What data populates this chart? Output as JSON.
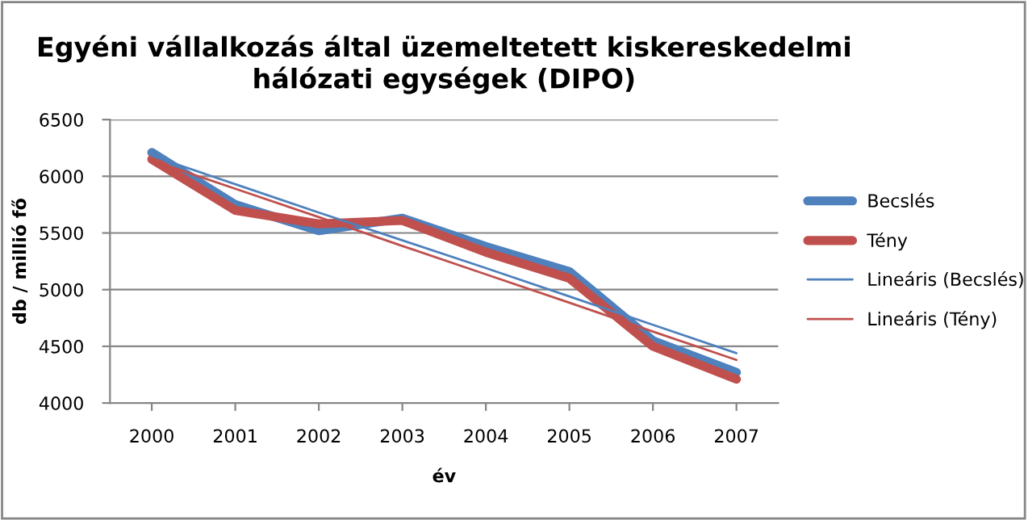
{
  "chart_data": {
    "type": "line",
    "title": "Egyéni vállalkozás által üzemeltetett kiskereskedelmi\nhálózati egységek (DIPO)",
    "xlabel": "év",
    "ylabel": "db / millió fő",
    "categories": [
      "2000",
      "2001",
      "2002",
      "2003",
      "2004",
      "2005",
      "2006",
      "2007"
    ],
    "series": [
      {
        "name": "Becslés",
        "color": "#4f81bd",
        "values": [
          6210,
          5750,
          5520,
          5630,
          5380,
          5160,
          4550,
          4270
        ]
      },
      {
        "name": "Tény",
        "color": "#c0504d",
        "values": [
          6150,
          5700,
          5580,
          5610,
          5330,
          5100,
          4500,
          4210
        ]
      },
      {
        "name": "Lineáris (Becslés)",
        "color": "#4f81bd",
        "values": [
          6180,
          5930,
          5680,
          5435,
          5190,
          4940,
          4690,
          4440
        ]
      },
      {
        "name": "Lineáris (Tény)",
        "color": "#c0504d",
        "values": [
          6140,
          5890,
          5640,
          5385,
          5135,
          4885,
          4630,
          4380
        ]
      }
    ],
    "ylim": [
      4000,
      6500
    ],
    "yticks": [
      4000,
      4500,
      5000,
      5500,
      6000,
      6500
    ],
    "grid": "y",
    "legend": "right",
    "marker": "none",
    "line_style": "solid"
  }
}
